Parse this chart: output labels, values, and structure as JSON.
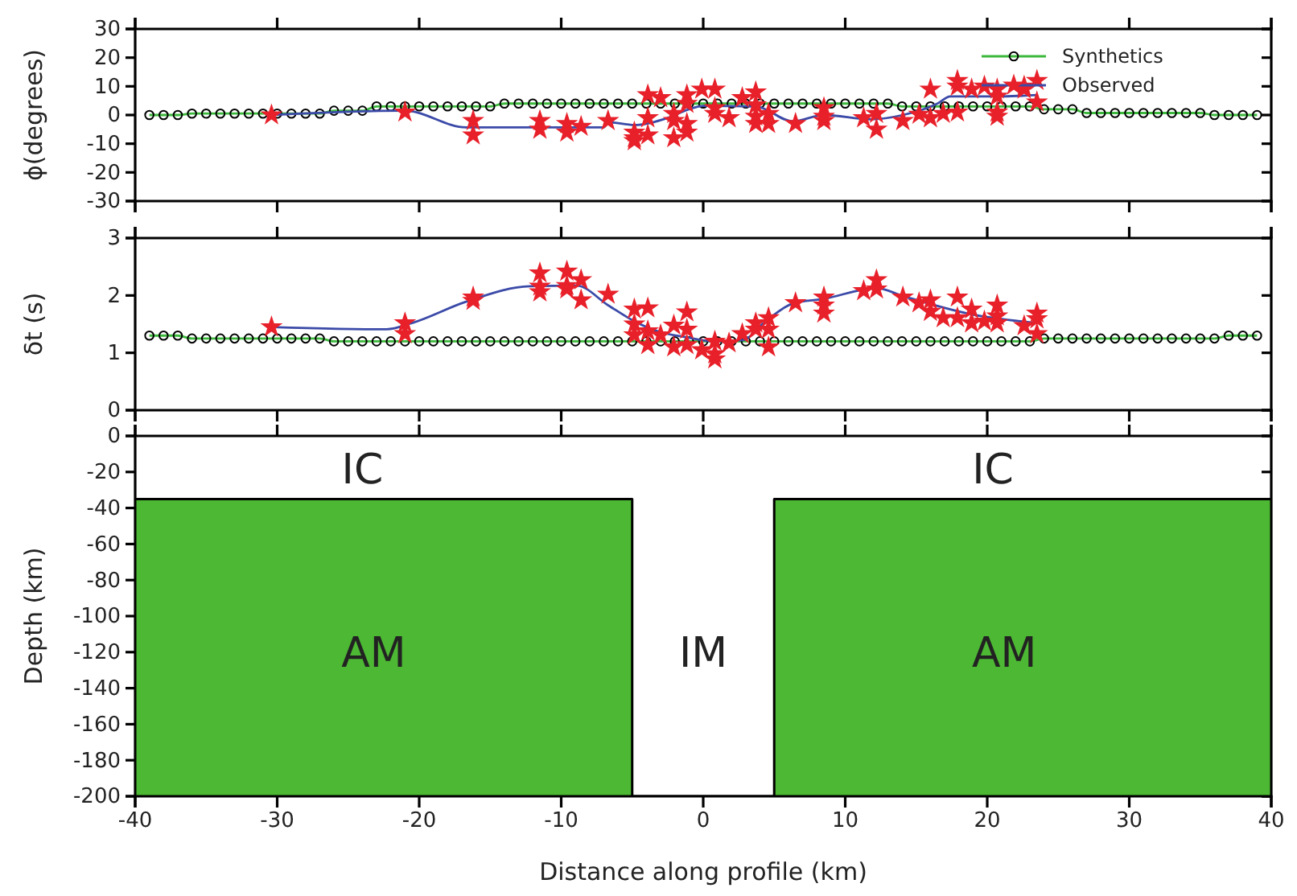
{
  "chart_data": [
    {
      "type": "line",
      "ylabel": "ϕ(degrees)",
      "xlim": [
        -40,
        40
      ],
      "xticks": [
        -40,
        -30,
        -20,
        -10,
        0,
        10,
        20,
        30,
        40
      ],
      "ylim": [
        -30,
        30
      ],
      "yticks": [
        -30,
        -20,
        -10,
        0,
        10,
        20,
        30
      ],
      "tick_labels": "y",
      "legend": "top right",
      "series": [
        {
          "name": "Synthetics",
          "marker": "circle",
          "color": "#3cb83c",
          "x": [
            -39,
            -38,
            -37,
            -36,
            -35,
            -34,
            -33,
            -32,
            -31,
            -30,
            -29,
            -28,
            -27,
            -26,
            -25,
            -24,
            -23,
            -22,
            -21,
            -20,
            -19,
            -18,
            -17,
            -16,
            -15,
            -14,
            -13,
            -12,
            -11,
            -10,
            -9,
            -8,
            -7,
            -6,
            -5,
            -4,
            -3,
            -2,
            -1,
            0,
            1,
            2,
            3,
            4,
            5,
            6,
            7,
            8,
            9,
            10,
            11,
            12,
            13,
            14,
            15,
            16,
            17,
            18,
            19,
            20,
            21,
            22,
            23,
            24,
            25,
            26,
            27,
            28,
            29,
            30,
            31,
            32,
            33,
            34,
            35,
            36,
            37,
            38,
            39
          ],
          "values": [
            0,
            0,
            0,
            0.5,
            0.5,
            0.5,
            0.5,
            0.5,
            0.5,
            0.5,
            0.5,
            0.5,
            0.5,
            1.5,
            1.5,
            1.5,
            3,
            3,
            3,
            3,
            3,
            3,
            3,
            3,
            3,
            4,
            4,
            4,
            4,
            4,
            4,
            4,
            4,
            4,
            4,
            4,
            4,
            4,
            4,
            4,
            4,
            4,
            4,
            4,
            4,
            4,
            4,
            4,
            4,
            4,
            4,
            4,
            4,
            3,
            3,
            3,
            3,
            3,
            3,
            3,
            3,
            3,
            3,
            2,
            2,
            2,
            0.7,
            0.7,
            0.7,
            0.7,
            0.7,
            0.7,
            0.7,
            0.7,
            0.7,
            0,
            0,
            0,
            0
          ]
        },
        {
          "name": "Observed",
          "marker": "none",
          "color": "#3b4aa8",
          "x": [
            -30.4,
            -21,
            -16.7,
            -7,
            -6.7,
            -4.85,
            -2.5,
            -1,
            0,
            3.7,
            6.3,
            8.5,
            11.8,
            14.06,
            16.5,
            17.4,
            21.1,
            23.5
          ],
          "values": [
            0,
            1.5,
            -4.3,
            -4.3,
            -2.5,
            -3.5,
            -1,
            2,
            3.2,
            3,
            -2.2,
            0,
            -1.5,
            0,
            4,
            6.5,
            6.5,
            7
          ]
        },
        {
          "type": "scatter",
          "marker": "star",
          "color": "#e8202a",
          "x": [
            -30.4,
            -21,
            -16.2,
            -16.2,
            -11.5,
            -11.5,
            -9.6,
            -9.6,
            -8.6,
            -6.7,
            -4.85,
            -4.85,
            -4.85,
            -3.9,
            -3.9,
            -3.9,
            -3,
            -2.07,
            -2.07,
            -2.07,
            -1.15,
            -1.15,
            -1.15,
            -1.15,
            -0.1,
            0.82,
            0.82,
            0.82,
            1.82,
            2.75,
            3.7,
            3.7,
            3.7,
            3.7,
            4.6,
            4.6,
            6.5,
            8.5,
            8.5,
            8.5,
            11.3,
            12.2,
            12.2,
            14.06,
            15.2,
            16,
            16,
            16.9,
            17.9,
            17.9,
            17.9,
            18.9,
            19.8,
            20.7,
            20.7,
            20.7,
            20.7,
            22.6,
            22.6,
            23.5,
            23.5
          ],
          "values": [
            0,
            1,
            -2,
            -7,
            -2,
            -5,
            -3,
            -6,
            -4,
            -2,
            -6,
            -8,
            -9,
            7,
            -1,
            -7,
            6,
            0.5,
            -2,
            -8,
            7,
            4,
            -3,
            -6,
            9,
            9,
            2.5,
            0.5,
            -1,
            6,
            8,
            3.5,
            -0.5,
            -3,
            0.5,
            -3,
            -3,
            2.5,
            -0.5,
            -2,
            -1,
            0.5,
            -5,
            -2,
            0.2,
            9,
            -1,
            0.5,
            12,
            10,
            1,
            9,
            10,
            9,
            6.5,
            1,
            -0.5,
            10,
            9,
            12,
            4.5
          ]
        }
      ]
    },
    {
      "type": "line",
      "ylabel": "δt (s)",
      "xlim": [
        -40,
        40
      ],
      "xticks": [
        -40,
        -30,
        -20,
        -10,
        0,
        10,
        20,
        30,
        40
      ],
      "ylim": [
        0,
        3
      ],
      "yticks": [
        0,
        1,
        2,
        3
      ],
      "tick_labels": "y",
      "series": [
        {
          "marker": "circle",
          "color": "#3cb83c",
          "x": [
            -39,
            -38,
            -37,
            -36,
            -35,
            -34,
            -33,
            -32,
            -31,
            -30,
            -29,
            -28,
            -27,
            -26,
            -25,
            -24,
            -23,
            -22,
            -21,
            -20,
            -19,
            -18,
            -17,
            -16,
            -15,
            -14,
            -13,
            -12,
            -11,
            -10,
            -9,
            -8,
            -7,
            -6,
            -5,
            -4,
            -3,
            -2,
            -1,
            0,
            1,
            2,
            3,
            4,
            5,
            6,
            7,
            8,
            9,
            10,
            11,
            12,
            13,
            14,
            15,
            16,
            17,
            18,
            19,
            20,
            21,
            22,
            23,
            24,
            25,
            26,
            27,
            28,
            29,
            30,
            31,
            32,
            33,
            34,
            35,
            36,
            37,
            38,
            39
          ],
          "values": [
            1.3,
            1.3,
            1.3,
            1.25,
            1.25,
            1.25,
            1.25,
            1.25,
            1.25,
            1.25,
            1.25,
            1.25,
            1.25,
            1.2,
            1.2,
            1.2,
            1.2,
            1.2,
            1.2,
            1.2,
            1.2,
            1.2,
            1.2,
            1.2,
            1.2,
            1.2,
            1.2,
            1.2,
            1.2,
            1.2,
            1.2,
            1.2,
            1.2,
            1.2,
            1.2,
            1.2,
            1.2,
            1.2,
            1.2,
            1.2,
            1.2,
            1.2,
            1.2,
            1.2,
            1.2,
            1.2,
            1.2,
            1.2,
            1.2,
            1.2,
            1.2,
            1.2,
            1.2,
            1.2,
            1.2,
            1.2,
            1.2,
            1.2,
            1.2,
            1.2,
            1.2,
            1.2,
            1.2,
            1.25,
            1.25,
            1.25,
            1.25,
            1.25,
            1.25,
            1.25,
            1.25,
            1.25,
            1.25,
            1.25,
            1.25,
            1.25,
            1.3,
            1.3,
            1.3
          ]
        },
        {
          "marker": "none",
          "color": "#3b4aa8",
          "x": [
            -30.4,
            -22.3,
            -20.5,
            -16.7,
            -12.2,
            -8.9,
            -6.7,
            -4.85,
            -3,
            -1.15,
            0.82,
            2.75,
            4.4,
            6.3,
            8.5,
            12.2,
            14.06,
            18.9,
            23.5
          ],
          "values": [
            1.45,
            1.41,
            1.52,
            1.89,
            2.16,
            2.17,
            1.83,
            1.55,
            1.36,
            1.27,
            1.2,
            1.22,
            1.55,
            1.86,
            1.94,
            2.13,
            1.99,
            1.67,
            1.52
          ]
        },
        {
          "type": "scatter",
          "marker": "star",
          "color": "#e8202a",
          "x": [
            -30.4,
            -21,
            -21,
            -16.2,
            -16.2,
            -11.5,
            -11.5,
            -11.5,
            -9.6,
            -9.6,
            -9.6,
            -8.6,
            -8.6,
            -6.7,
            -4.85,
            -4.85,
            -4.85,
            -3.9,
            -3.9,
            -3.9,
            -3,
            -2.07,
            -2.07,
            -1.15,
            -1.15,
            -1.15,
            -0.1,
            0.82,
            0.82,
            0.82,
            1.82,
            2.75,
            3.7,
            3.7,
            4.6,
            4.6,
            4.6,
            6.5,
            8.5,
            8.5,
            8.5,
            11.3,
            12.2,
            12.2,
            14.06,
            15.2,
            16,
            16,
            16.9,
            17.9,
            17.9,
            18.9,
            18.9,
            19.8,
            20.7,
            20.7,
            20.7,
            22.6,
            23.5,
            23.5,
            23.5
          ],
          "values": [
            1.45,
            1.52,
            1.33,
            1.97,
            1.91,
            2.39,
            2.16,
            2.06,
            2.42,
            2.17,
            2.11,
            2.27,
            1.92,
            2.02,
            1.76,
            1.5,
            1.31,
            1.78,
            1.38,
            1.14,
            1.31,
            1.48,
            1.1,
            1.71,
            1.41,
            1.14,
            1.05,
            1.2,
            0.98,
            0.89,
            1.17,
            1.33,
            1.52,
            1.41,
            1.61,
            1.41,
            1.1,
            1.87,
            1.97,
            1.83,
            1.69,
            2.08,
            2.27,
            2.11,
            1.97,
            1.87,
            1.92,
            1.72,
            1.61,
            1.97,
            1.61,
            1.76,
            1.52,
            1.55,
            1.83,
            1.64,
            1.52,
            1.47,
            1.69,
            1.59,
            1.33
          ]
        }
      ]
    },
    {
      "type": "area",
      "xlabel": "Distance along profile (km)",
      "ylabel": "Depth (km)",
      "xlim": [
        -40,
        40
      ],
      "xticks": [
        -40,
        -30,
        -20,
        -10,
        0,
        10,
        20,
        30,
        40
      ],
      "ylim": [
        -200,
        0
      ],
      "yticks": [
        -200,
        -180,
        -160,
        -140,
        -120,
        -100,
        -80,
        -60,
        -40,
        -20,
        0
      ],
      "series": [
        {
          "color": "#4cb833",
          "x": [
            -40,
            -40,
            -5,
            -5,
            5,
            5,
            40,
            40
          ],
          "values": [
            -200,
            -35,
            -35,
            -200,
            -200,
            -35,
            -35,
            -200
          ]
        }
      ],
      "annotations": [
        "IC",
        "IC",
        "AM",
        "IM",
        "AM"
      ]
    }
  ]
}
